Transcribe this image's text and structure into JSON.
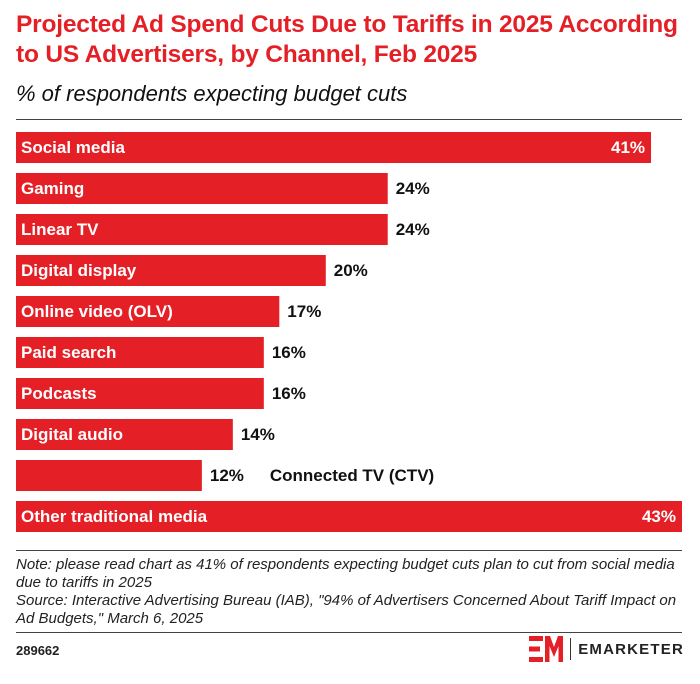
{
  "header": {
    "title": "Projected Ad Spend Cuts Due to Tariffs in 2025 According to US Advertisers, by Channel, Feb 2025",
    "subtitle": "% of respondents expecting budget cuts"
  },
  "chart_data": {
    "type": "bar",
    "orientation": "horizontal",
    "title": "Projected Ad Spend Cuts Due to Tariffs in 2025 According to US Advertisers, by Channel, Feb 2025",
    "subtitle": "% of respondents expecting budget cuts",
    "categories": [
      "Social media",
      "Gaming",
      "Linear TV",
      "Digital display",
      "Online video (OLV)",
      "Paid search",
      "Podcasts",
      "Digital audio",
      "Connected TV (CTV)",
      "Other traditional media"
    ],
    "values": [
      41,
      24,
      24,
      20,
      17,
      16,
      16,
      14,
      12,
      43
    ],
    "value_labels": [
      "41%",
      "24%",
      "24%",
      "20%",
      "17%",
      "16%",
      "16%",
      "14%",
      "12%",
      "43%"
    ],
    "xlim": [
      0,
      43
    ],
    "grid": false,
    "legend": "none",
    "bar_color": "#e41f26"
  },
  "footer": {
    "note": "Note: please read chart as 41% of respondents expecting budget cuts plan to cut from social media due to tariffs in 2025",
    "source": "Source: Interactive Advertising Bureau (IAB), \"94% of Advertisers Concerned About Tariff Impact on Ad Budgets,\" March 6, 2025",
    "chart_id": "289662",
    "brand": "EMARKETER",
    "brand_color": "#e41f26"
  }
}
